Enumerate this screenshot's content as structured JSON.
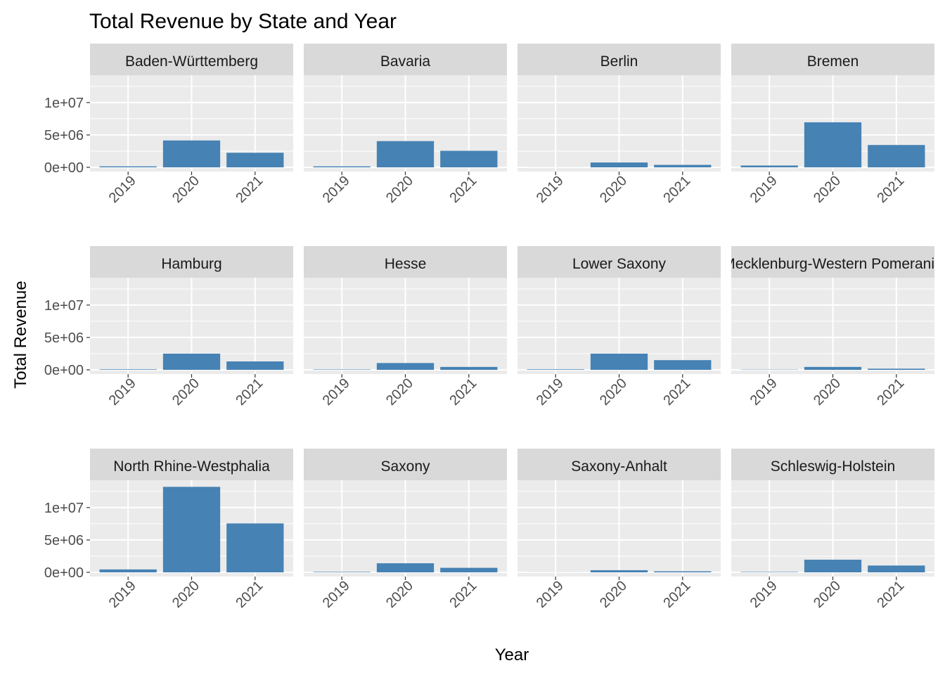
{
  "chart_data": {
    "type": "bar",
    "title": "Total Revenue by State and Year",
    "xlabel": "Year",
    "ylabel": "Total Revenue",
    "categories": [
      "2019",
      "2020",
      "2021"
    ],
    "ylim": [
      0,
      14000000
    ],
    "yticks": [
      0,
      5000000,
      10000000
    ],
    "ytick_labels": [
      "0e+00",
      "5e+06",
      "1e+07"
    ],
    "bar_color": "#4682B4",
    "panel_bg": "#EBEBEB",
    "strip_bg": "#D9D9D9",
    "facets": [
      {
        "name": "Baden-Württemberg",
        "values": [
          150000,
          4150000,
          2250000
        ]
      },
      {
        "name": "Bavaria",
        "values": [
          150000,
          4050000,
          2550000
        ]
      },
      {
        "name": "Berlin",
        "values": [
          10000,
          750000,
          380000
        ]
      },
      {
        "name": "Bremen",
        "values": [
          280000,
          6950000,
          3450000
        ]
      },
      {
        "name": "Hamburg",
        "values": [
          80000,
          2500000,
          1300000
        ]
      },
      {
        "name": "Hesse",
        "values": [
          60000,
          1050000,
          450000
        ]
      },
      {
        "name": "Lower Saxony",
        "values": [
          80000,
          2500000,
          1500000
        ]
      },
      {
        "name": "Mecklenburg-Western Pomerania",
        "values": [
          40000,
          450000,
          180000
        ]
      },
      {
        "name": "North Rhine-Westphalia",
        "values": [
          450000,
          13200000,
          7550000
        ]
      },
      {
        "name": "Saxony",
        "values": [
          70000,
          1400000,
          700000
        ]
      },
      {
        "name": "Saxony-Anhalt",
        "values": [
          10000,
          330000,
          160000
        ]
      },
      {
        "name": "Schleswig-Holstein",
        "values": [
          60000,
          1950000,
          1050000
        ]
      }
    ]
  }
}
